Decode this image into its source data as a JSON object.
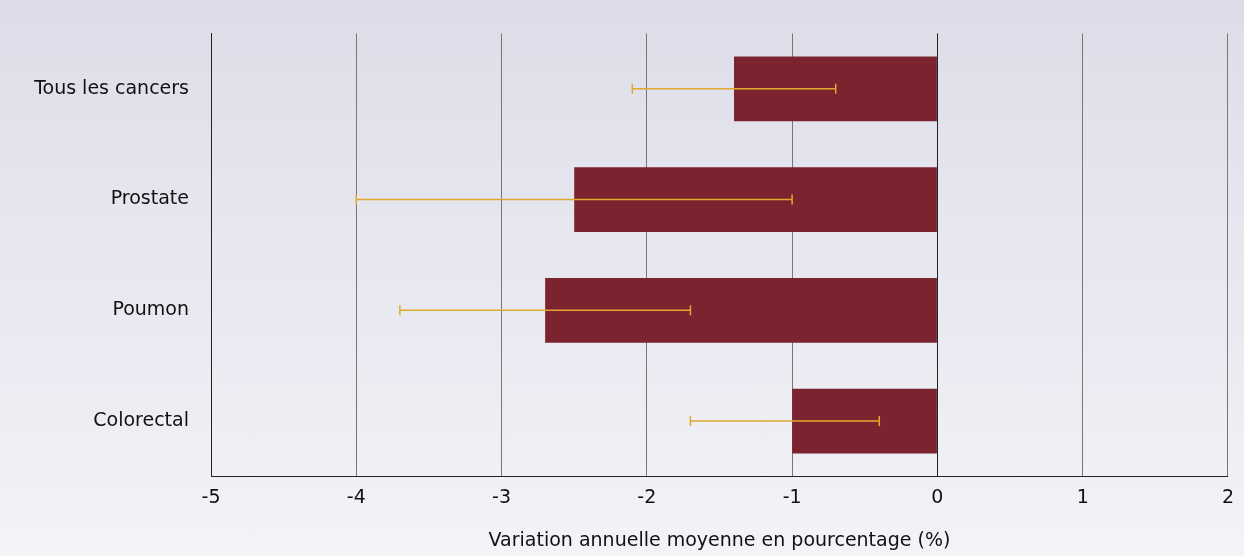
{
  "chart_data": {
    "type": "bar",
    "orientation": "horizontal",
    "xlabel": "Variation annuelle moyenne en pourcentage (%)",
    "categories": [
      "Tous les cancers",
      "Prostate",
      "Poumon",
      "Colorectal"
    ],
    "values": [
      -1.4,
      -2.5,
      -2.7,
      -1.0
    ],
    "color": "#7b2430",
    "errors": [
      [
        -2.1,
        -0.7
      ],
      [
        -4.0,
        -1.0
      ],
      [
        -3.7,
        -1.7
      ],
      [
        -1.7,
        -0.4
      ]
    ],
    "xlim": [
      -5,
      2
    ],
    "xticks": [
      -5,
      -4,
      -3,
      -2,
      -1,
      0,
      1,
      2
    ],
    "grid": "x",
    "legend": false
  }
}
